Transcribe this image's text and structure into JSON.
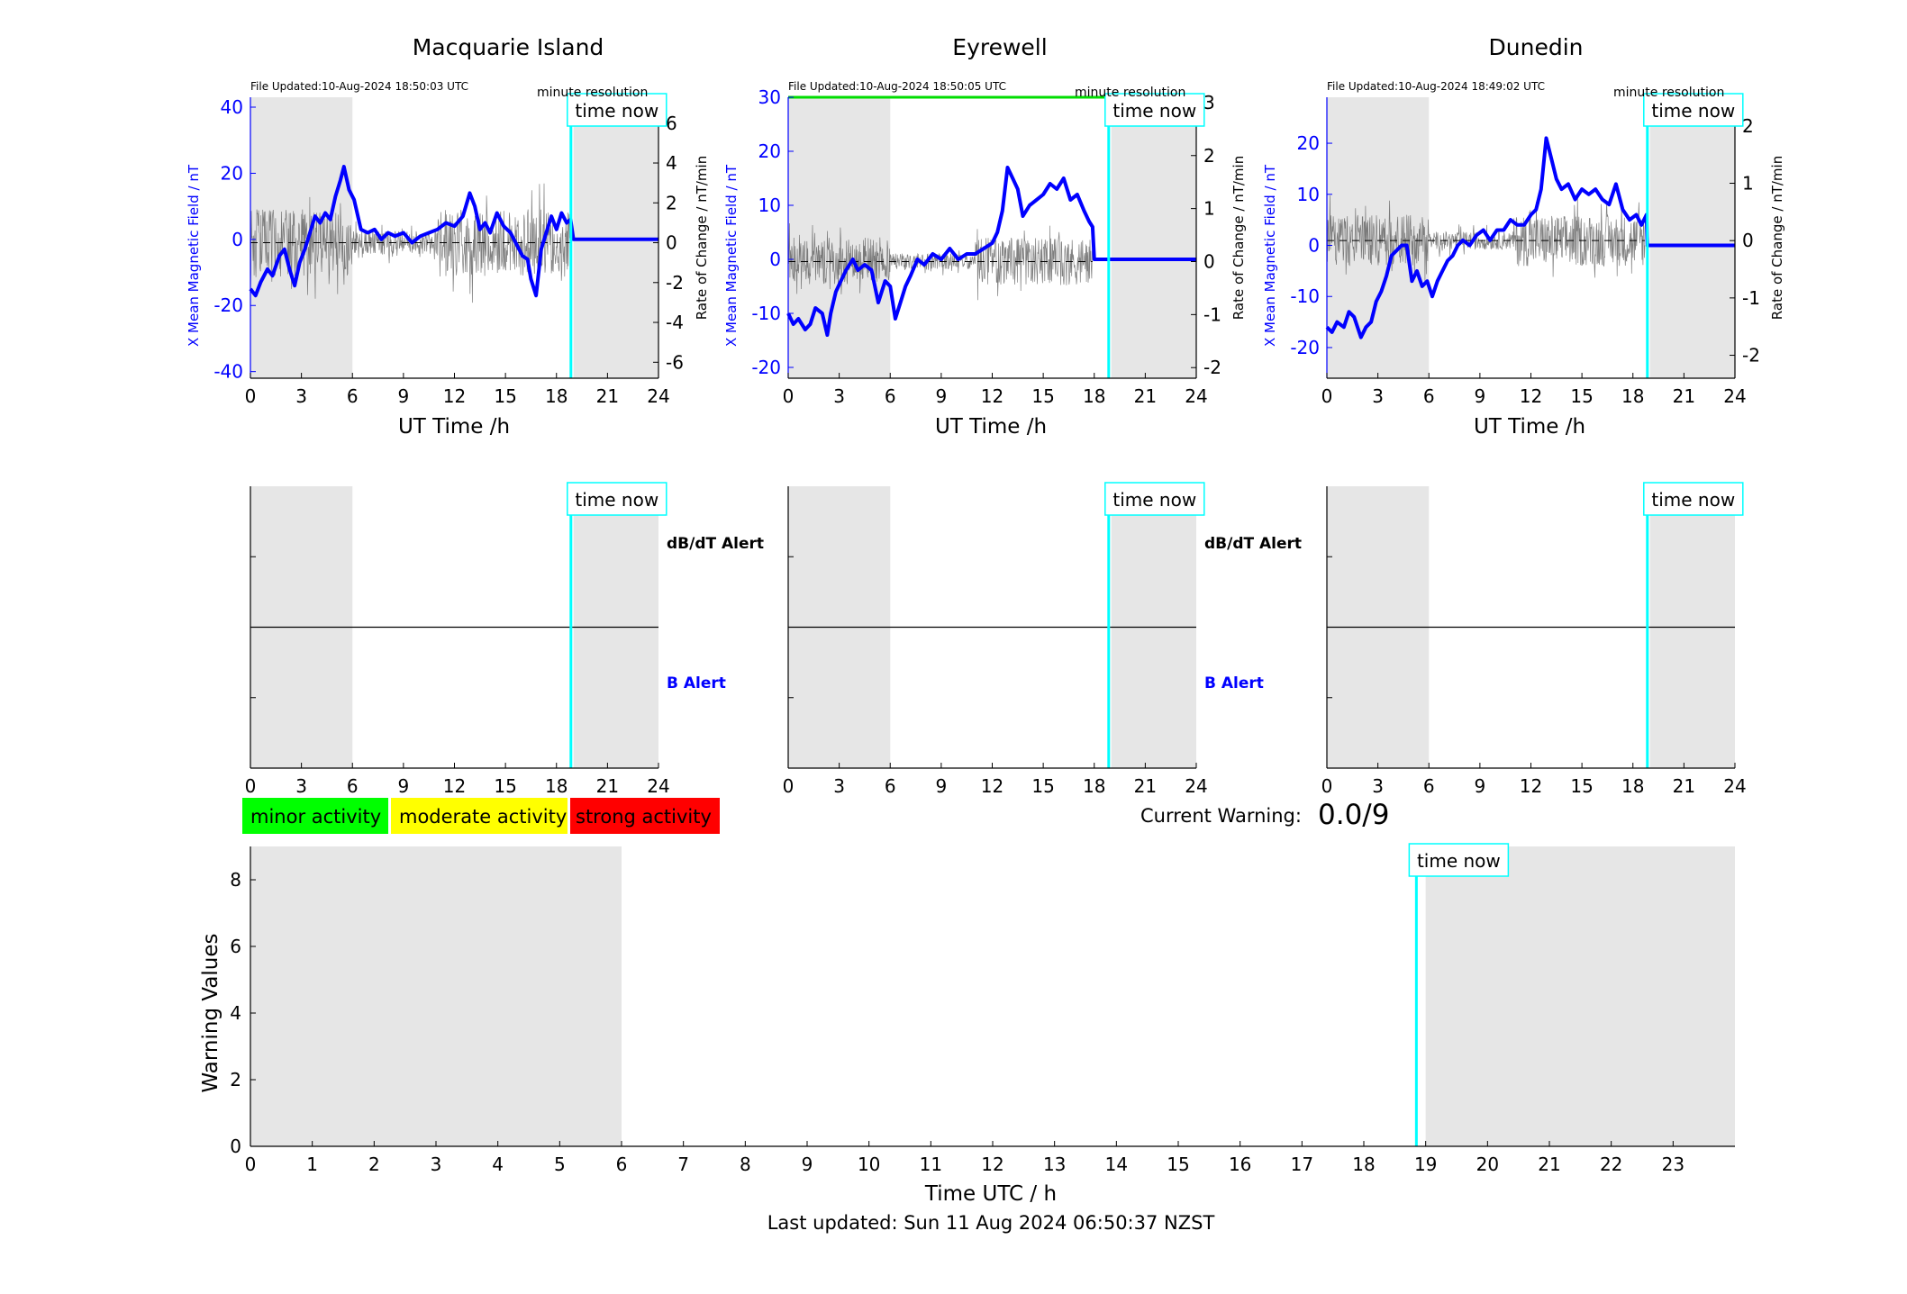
{
  "colors": {
    "field": "#0000ff",
    "rate": "#555555",
    "night_shade": "#e6e6e6",
    "time_now": "#00ffff",
    "b_alert": "#0000ff",
    "minor": "#00ff00",
    "moderate": "#ffff00",
    "strong": "#ff0000",
    "eyrewell_top_bar": "#00dd00"
  },
  "time_now_label": "time now",
  "resolution_label": "minute resolution",
  "warning_legend": [
    {
      "label": "minor activity",
      "color": "#00ff00"
    },
    {
      "label": "moderate activity",
      "color": "#ffff00"
    },
    {
      "label": "strong activity",
      "color": "#ff0000"
    }
  ],
  "current_warning": {
    "label": "Current Warning:",
    "value": "0.0/9"
  },
  "last_updated": "Last updated: Sun 11 Aug 2024 06:50:37 NZST",
  "alert_labels": {
    "dbdt": "dB/dT Alert",
    "b": "B Alert"
  },
  "chart_data": [
    {
      "type": "line",
      "title": "Macquarie Island",
      "file_updated": "File Updated:10-Aug-2024 18:50:03 UTC",
      "xlabel": "UT Time /h",
      "ylabel": "X Mean Magnetic Field / nT",
      "y2label": "Rate of Change / nT/min",
      "xlim": [
        0,
        24
      ],
      "ylim": [
        -42,
        43
      ],
      "y2lim": [
        -6.8,
        7.3
      ],
      "xticks": [
        0,
        3,
        6,
        9,
        12,
        15,
        18,
        21,
        24
      ],
      "yticks": [
        -40,
        -20,
        0,
        20,
        40
      ],
      "y2ticks": [
        -6,
        -4,
        -2,
        0,
        2,
        4,
        6
      ],
      "night_shading": [
        [
          0,
          6
        ],
        [
          19,
          24
        ]
      ],
      "time_now": 18.85,
      "series": [
        {
          "x": [
            0,
            0.3,
            0.6,
            1.0,
            1.3,
            1.7,
            2.0,
            2.3,
            2.6,
            2.9,
            3.2,
            3.5,
            3.8,
            4.1,
            4.4,
            4.7,
            5.0,
            5.3,
            5.5,
            5.8,
            6.1,
            6.5,
            6.9,
            7.3,
            7.7,
            8.1,
            8.5,
            9.0,
            9.5,
            10.0,
            10.5,
            11.0,
            11.5,
            12.0,
            12.5,
            12.9,
            13.2,
            13.5,
            13.8,
            14.1,
            14.5,
            14.9,
            15.3,
            15.7,
            16.0,
            16.3,
            16.5,
            16.8,
            17.1,
            17.4,
            17.7,
            18.0,
            18.3,
            18.6,
            18.83,
            19.0,
            24.0
          ],
          "y": [
            -15,
            -17,
            -13,
            -9,
            -11,
            -5,
            -3,
            -9,
            -14,
            -7,
            -3,
            2,
            7,
            5,
            8,
            6,
            13,
            18,
            22,
            15,
            12,
            3,
            2,
            3,
            0,
            2,
            1,
            2,
            -1,
            1,
            2,
            3,
            5,
            4,
            7,
            14,
            10,
            3,
            5,
            2,
            8,
            4,
            2,
            -2,
            -5,
            -6,
            -12,
            -17,
            -3,
            2,
            7,
            3,
            8,
            5,
            6,
            0,
            0
          ]
        }
      ],
      "rate_series": {
        "x_start": 0,
        "x_end": 18.8,
        "amplitude": 1.7
      }
    },
    {
      "type": "line",
      "title": "Eyrewell",
      "file_updated": "File Updated:10-Aug-2024 18:50:05 UTC",
      "xlabel": "UT Time /h",
      "ylabel": "X Mean Magnetic Field / nT",
      "y2label": "Rate of Change / nT/min",
      "xlim": [
        0,
        24
      ],
      "ylim": [
        -22,
        30
      ],
      "y2lim": [
        -2.2,
        3.1
      ],
      "xticks": [
        0,
        3,
        6,
        9,
        12,
        15,
        18,
        21,
        24
      ],
      "yticks": [
        -20,
        -10,
        0,
        10,
        20,
        30
      ],
      "y2ticks": [
        -2,
        -1,
        0,
        1,
        2,
        3
      ],
      "night_shading": [
        [
          0,
          6
        ],
        [
          19,
          24
        ]
      ],
      "time_now": 18.85,
      "top_bar_value": 30,
      "series": [
        {
          "x": [
            0,
            0.3,
            0.6,
            1.0,
            1.3,
            1.6,
            2.0,
            2.3,
            2.5,
            2.8,
            3.1,
            3.4,
            3.8,
            4.1,
            4.5,
            4.9,
            5.3,
            5.7,
            6.0,
            6.3,
            6.6,
            6.9,
            7.2,
            7.6,
            8.0,
            8.5,
            9.0,
            9.5,
            10.0,
            10.5,
            11.0,
            11.5,
            12.0,
            12.3,
            12.6,
            12.9,
            13.2,
            13.5,
            13.8,
            14.2,
            14.6,
            15.0,
            15.4,
            15.8,
            16.2,
            16.6,
            17.0,
            17.4,
            17.7,
            17.9,
            18.0,
            24.0
          ],
          "y": [
            -10,
            -12,
            -11,
            -13,
            -12,
            -9,
            -10,
            -14,
            -10,
            -6,
            -4,
            -2,
            0,
            -2,
            -1,
            -2,
            -8,
            -4,
            -5,
            -11,
            -8,
            -5,
            -3,
            0,
            -1,
            1,
            0,
            2,
            0,
            1,
            1,
            2,
            3,
            5,
            9,
            17,
            15,
            13,
            8,
            10,
            11,
            12,
            14,
            13,
            15,
            11,
            12,
            9,
            7,
            6,
            0,
            0
          ]
        }
      ],
      "rate_series": {
        "x_start": 0,
        "x_end": 17.9,
        "amplitude": 0.45
      }
    },
    {
      "type": "line",
      "title": "Dunedin",
      "file_updated": "File Updated:10-Aug-2024 18:49:02 UTC",
      "xlabel": "UT Time /h",
      "ylabel": "X Mean Magnetic Field / nT",
      "y2label": "Rate of Change / nT/min",
      "xlim": [
        0,
        24
      ],
      "ylim": [
        -26,
        29
      ],
      "y2lim": [
        -2.4,
        2.5
      ],
      "xticks": [
        0,
        3,
        6,
        9,
        12,
        15,
        18,
        21,
        24
      ],
      "yticks": [
        -20,
        -10,
        0,
        10,
        20
      ],
      "y2ticks": [
        -2,
        -1,
        0,
        1,
        2
      ],
      "night_shading": [
        [
          0,
          6
        ],
        [
          19,
          24
        ]
      ],
      "time_now": 18.85,
      "series": [
        {
          "x": [
            0,
            0.3,
            0.6,
            1.0,
            1.3,
            1.6,
            2.0,
            2.3,
            2.6,
            2.9,
            3.2,
            3.5,
            3.8,
            4.1,
            4.4,
            4.7,
            5.0,
            5.3,
            5.6,
            5.9,
            6.2,
            6.5,
            6.8,
            7.1,
            7.4,
            7.7,
            8.0,
            8.4,
            8.8,
            9.2,
            9.6,
            10.0,
            10.4,
            10.8,
            11.2,
            11.6,
            12.0,
            12.3,
            12.6,
            12.9,
            13.2,
            13.5,
            13.8,
            14.2,
            14.6,
            15.0,
            15.4,
            15.8,
            16.2,
            16.6,
            17.0,
            17.4,
            17.8,
            18.2,
            18.5,
            18.8,
            18.85,
            24.0
          ],
          "y": [
            -16,
            -17,
            -15,
            -16,
            -13,
            -14,
            -18,
            -16,
            -15,
            -11,
            -9,
            -6,
            -2,
            -1,
            0,
            0,
            -7,
            -5,
            -8,
            -7,
            -10,
            -7,
            -5,
            -3,
            -2,
            0,
            1,
            0,
            2,
            3,
            1,
            3,
            3,
            5,
            4,
            4,
            6,
            7,
            11,
            21,
            17,
            13,
            11,
            12,
            9,
            11,
            10,
            11,
            9,
            8,
            12,
            7,
            5,
            6,
            4,
            6,
            0,
            0
          ]
        }
      ],
      "rate_series": {
        "x_start": 0,
        "x_end": 18.7,
        "amplitude": 0.45
      }
    },
    {
      "type": "line",
      "title": "",
      "xlim": [
        0,
        24
      ],
      "xticks": [
        0,
        3,
        6,
        9,
        12,
        15,
        18,
        21,
        24
      ],
      "night_shading": [
        [
          0,
          6
        ],
        [
          19,
          24
        ]
      ],
      "time_now": 18.85,
      "series": []
    },
    {
      "type": "line",
      "title": "",
      "xlim": [
        0,
        24
      ],
      "xticks": [
        0,
        3,
        6,
        9,
        12,
        15,
        18,
        21,
        24
      ],
      "night_shading": [
        [
          0,
          6
        ],
        [
          19,
          24
        ]
      ],
      "time_now": 18.85,
      "series": []
    },
    {
      "type": "line",
      "title": "",
      "xlim": [
        0,
        24
      ],
      "xticks": [
        0,
        3,
        6,
        9,
        12,
        15,
        18,
        21,
        24
      ],
      "night_shading": [
        [
          0,
          6
        ],
        [
          19,
          24
        ]
      ],
      "time_now": 18.85,
      "series": []
    },
    {
      "type": "bar",
      "title": "",
      "xlabel": "Time UTC / h",
      "ylabel": "Warning Values",
      "xlim": [
        0,
        24
      ],
      "ylim": [
        0,
        9
      ],
      "xticks": [
        0,
        1,
        2,
        3,
        4,
        5,
        6,
        7,
        8,
        9,
        10,
        11,
        12,
        13,
        14,
        15,
        16,
        17,
        18,
        19,
        20,
        21,
        22,
        23
      ],
      "yticks": [
        0,
        2,
        4,
        6,
        8
      ],
      "night_shading": [
        [
          0,
          6
        ],
        [
          19,
          24
        ]
      ],
      "time_now": 18.85,
      "values": []
    }
  ]
}
